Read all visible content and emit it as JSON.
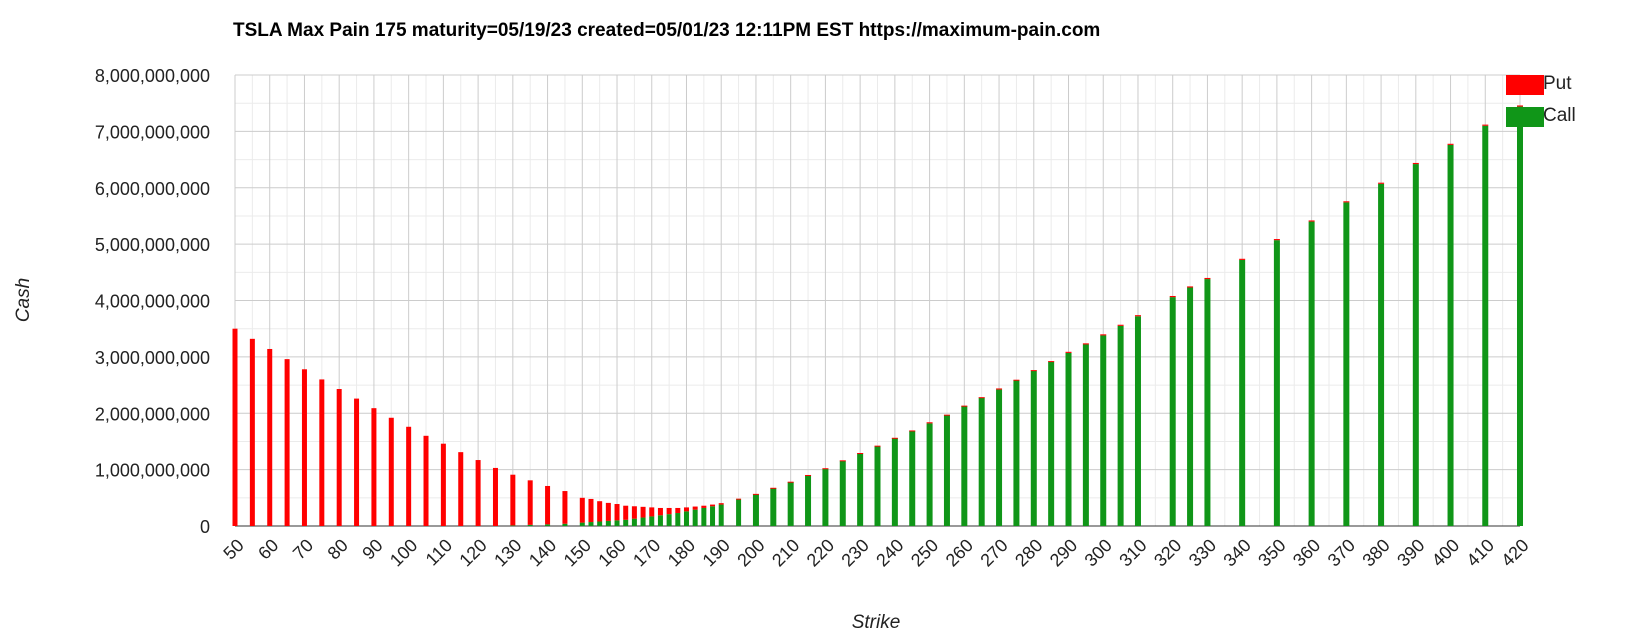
{
  "chart_data": {
    "type": "bar",
    "stacked": true,
    "title": "TSLA Max Pain 175 maturity=05/19/23 created=05/01/23 12:11PM EST https://maximum-pain.com",
    "xlabel": "Strike",
    "ylabel": "Cash",
    "ylim": [
      0,
      8000000000
    ],
    "yticks": [
      "0",
      "1,000,000,000",
      "2,000,000,000",
      "3,000,000,000",
      "4,000,000,000",
      "5,000,000,000",
      "6,000,000,000",
      "7,000,000,000",
      "8,000,000,000"
    ],
    "xlim": [
      50,
      420
    ],
    "xticks": [
      "50",
      "60",
      "70",
      "80",
      "90",
      "100",
      "110",
      "120",
      "130",
      "140",
      "150",
      "160",
      "170",
      "180",
      "190",
      "200",
      "210",
      "220",
      "230",
      "240",
      "250",
      "260",
      "270",
      "280",
      "290",
      "300",
      "310",
      "320",
      "330",
      "340",
      "350",
      "360",
      "370",
      "380",
      "390",
      "400",
      "410",
      "420"
    ],
    "grid": true,
    "legend_position": "top-right",
    "x": [
      50,
      55,
      60,
      65,
      70,
      75,
      80,
      85,
      90,
      95,
      100,
      105,
      110,
      115,
      120,
      125,
      130,
      135,
      140,
      145,
      150,
      152.5,
      155,
      157.5,
      160,
      162.5,
      165,
      167.5,
      170,
      172.5,
      175,
      177.5,
      180,
      182.5,
      185,
      187.5,
      190,
      195,
      200,
      205,
      210,
      215,
      220,
      225,
      230,
      235,
      240,
      245,
      250,
      255,
      260,
      265,
      270,
      275,
      280,
      285,
      290,
      295,
      300,
      305,
      310,
      320,
      325,
      330,
      340,
      350,
      360,
      370,
      380,
      390,
      400,
      410,
      420
    ],
    "series": [
      {
        "name": "Put",
        "color": "#ff0000",
        "values": [
          3500000000,
          3320000000,
          3140000000,
          2960000000,
          2780000000,
          2600000000,
          2430000000,
          2260000000,
          2090000000,
          1920000000,
          1760000000,
          1600000000,
          1460000000,
          1310000000,
          1170000000,
          1030000000,
          900000000,
          790000000,
          680000000,
          580000000,
          440000000,
          410000000,
          360000000,
          320000000,
          290000000,
          250000000,
          220000000,
          190000000,
          160000000,
          130000000,
          110000000,
          90000000,
          70000000,
          55000000,
          40000000,
          30000000,
          25000000,
          15000000,
          10000000,
          8000000,
          6000000,
          5000000,
          5000000,
          5000000,
          5000000,
          5000000,
          5000000,
          5000000,
          20000000,
          5000000,
          5000000,
          5000000,
          20000000,
          5000000,
          5000000,
          5000000,
          20000000,
          20000000,
          20000000,
          20000000,
          20000000,
          20000000,
          20000000,
          20000000,
          20000000,
          20000000,
          20000000,
          20000000,
          20000000,
          20000000,
          20000000,
          20000000,
          20000000
        ]
      },
      {
        "name": "Call",
        "color": "#109618",
        "values": [
          0,
          0,
          0,
          0,
          0,
          0,
          0,
          0,
          0,
          0,
          0,
          0,
          0,
          0,
          0,
          0,
          10000000,
          20000000,
          30000000,
          40000000,
          60000000,
          70000000,
          80000000,
          90000000,
          100000000,
          110000000,
          130000000,
          150000000,
          170000000,
          190000000,
          210000000,
          230000000,
          260000000,
          290000000,
          320000000,
          350000000,
          380000000,
          470000000,
          560000000,
          670000000,
          780000000,
          900000000,
          1020000000,
          1160000000,
          1290000000,
          1420000000,
          1560000000,
          1690000000,
          1820000000,
          1970000000,
          2130000000,
          2280000000,
          2420000000,
          2590000000,
          2760000000,
          2920000000,
          3070000000,
          3220000000,
          3380000000,
          3550000000,
          3720000000,
          4060000000,
          4230000000,
          4380000000,
          4720000000,
          5070000000,
          5400000000,
          5740000000,
          6070000000,
          6420000000,
          6760000000,
          7100000000,
          7440000000
        ]
      }
    ]
  }
}
